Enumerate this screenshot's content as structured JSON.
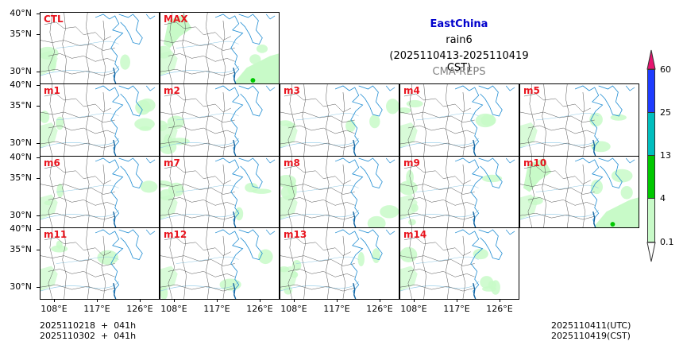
{
  "header": {
    "region": "EastChina",
    "variable": "rain6",
    "period": "(2025110413-2025110419 CST)",
    "model": "CMA-REPS"
  },
  "panels": [
    {
      "label": "CTL",
      "row": 0,
      "col": 0
    },
    {
      "label": "MAX",
      "row": 0,
      "col": 1
    },
    {
      "label": "m1",
      "row": 1,
      "col": 0
    },
    {
      "label": "m2",
      "row": 1,
      "col": 1
    },
    {
      "label": "m3",
      "row": 1,
      "col": 2
    },
    {
      "label": "m4",
      "row": 1,
      "col": 3
    },
    {
      "label": "m5",
      "row": 1,
      "col": 4
    },
    {
      "label": "m6",
      "row": 2,
      "col": 0
    },
    {
      "label": "m7",
      "row": 2,
      "col": 1
    },
    {
      "label": "m8",
      "row": 2,
      "col": 2
    },
    {
      "label": "m9",
      "row": 2,
      "col": 3
    },
    {
      "label": "m10",
      "row": 2,
      "col": 4
    },
    {
      "label": "m11",
      "row": 3,
      "col": 0
    },
    {
      "label": "m12",
      "row": 3,
      "col": 1
    },
    {
      "label": "m13",
      "row": 3,
      "col": 2
    },
    {
      "label": "m14",
      "row": 3,
      "col": 3
    }
  ],
  "axes": {
    "lat_ticks": [
      "40°N",
      "35°N",
      "30°N"
    ],
    "lon_ticks": [
      "108°E",
      "117°E",
      "126°E"
    ]
  },
  "colorbar": {
    "levels": [
      "0.1",
      "4",
      "13",
      "25",
      "60"
    ],
    "colors": [
      "#c8fac8",
      "#00c800",
      "#00bebe",
      "#1e3cff"
    ],
    "over_color": "#e6146e",
    "under_color": "#ffffff"
  },
  "footer": {
    "init_line1": "2025110218  +  041h",
    "init_line2": "2025110302  +  041h",
    "valid_utc": "2025110411(UTC)",
    "valid_cst": "2025110419(CST)"
  },
  "colors": {
    "label_red": "#e8141e",
    "title_blue": "#0000cc",
    "model_gray": "#808080",
    "coast_blue": "#1e8cd2",
    "river_blue": "#8cc8e6",
    "rain_light": "#c8fac8"
  }
}
